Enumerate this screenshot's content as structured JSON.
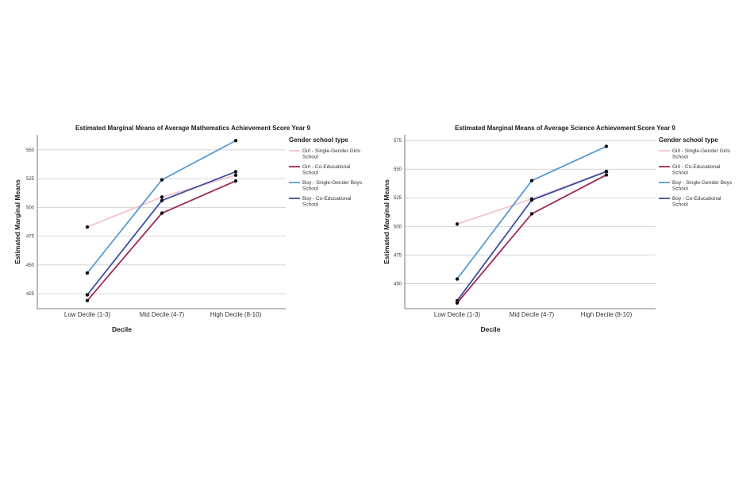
{
  "chart_data": [
    {
      "type": "line",
      "title": "Estimated Marginal Means of Average Mathematics Achievement Score Year 9",
      "xlabel": "Decile",
      "ylabel": "Estimated Marginal Means",
      "categories": [
        "Low Decile (1-3)",
        "Mid Decile (4-7)",
        "High Decile (8-10)"
      ],
      "ylim": [
        412,
        563
      ],
      "yticks": [
        425,
        450,
        475,
        500,
        525,
        550
      ],
      "grid": "horizontal",
      "legend_title": "Gender school type",
      "legend_position": "right",
      "series": [
        {
          "name": "Girl - Single-Gender Girls School",
          "color": "#f4c2d2",
          "values": [
            483,
            509,
            528
          ]
        },
        {
          "name": "Girl - Co-Educational School",
          "color": "#a0285a",
          "values": [
            419,
            495,
            523
          ]
        },
        {
          "name": "Boy - Single-Gender Boys School",
          "color": "#5b9bd5",
          "values": [
            443,
            524,
            558
          ]
        },
        {
          "name": "Boy - Co-Educational School",
          "color": "#3d4f9f",
          "values": [
            424,
            506,
            531
          ]
        }
      ]
    },
    {
      "type": "line",
      "title": "Estimated Marginal Means of Average Science Achievement Score Year 9",
      "xlabel": "Decile",
      "ylabel": "Estimated Marginal Means",
      "categories": [
        "Low Decile (1-3)",
        "Mid Decile (4-7)",
        "High Decile (8-10)"
      ],
      "ylim": [
        428,
        580
      ],
      "yticks": [
        450,
        475,
        500,
        525,
        550,
        575
      ],
      "grid": "horizontal",
      "legend_title": "Gender school type",
      "legend_position": "right",
      "series": [
        {
          "name": "Girl - Single-Gender Girls School",
          "color": "#f4c2d2",
          "values": [
            502,
            524,
            548
          ]
        },
        {
          "name": "Girl - Co-Educational School",
          "color": "#a0285a",
          "values": [
            433,
            511,
            545
          ]
        },
        {
          "name": "Boy - Single-Gender Boys School",
          "color": "#5b9bd5",
          "values": [
            454,
            540,
            570
          ]
        },
        {
          "name": "Boy - Co-Educational School",
          "color": "#3d4f9f",
          "values": [
            435,
            523,
            548
          ]
        }
      ]
    }
  ]
}
